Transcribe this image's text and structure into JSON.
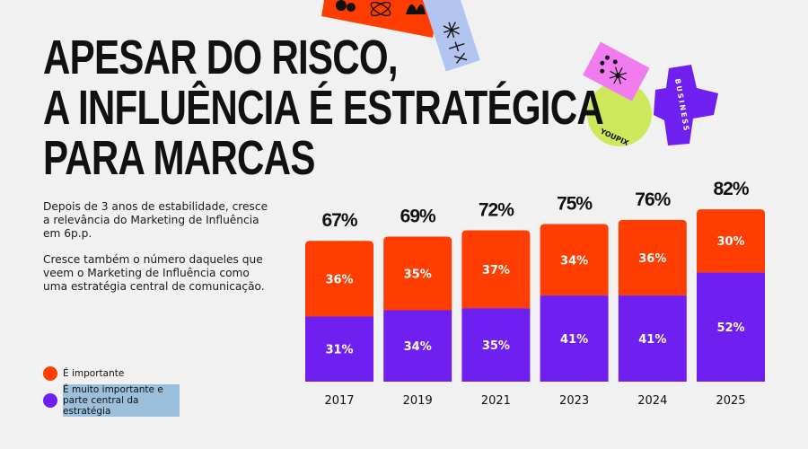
{
  "title": {
    "lines": [
      "APESAR DO RISCO,",
      "A INFLUÊNCIA É ESTRATÉGICA",
      "PARA MARCAS"
    ]
  },
  "description": {
    "paragraphs": [
      "Depois de 3 anos de estabilidade, cresce a relevância do Marketing de Influência em 6p.p.",
      "Cresce também o número daqueles que veem o Marketing de Influência como uma estratégia central de comunicação."
    ]
  },
  "stickers": {
    "circle_text": "YOUPIX",
    "badge_text": "BUSINESS"
  },
  "colors": {
    "important": "#ff3d00",
    "very_important": "#6f1ff0",
    "background": "#f1f1f1"
  },
  "legend": [
    {
      "label": "É importante",
      "color": "#ff3d00"
    },
    {
      "label": "É muito importante e parte central da estratégia",
      "color": "#6f1ff0"
    }
  ],
  "chart_data": {
    "type": "bar",
    "stacked": true,
    "categories": [
      "2017",
      "2019",
      "2021",
      "2023",
      "2024",
      "2025"
    ],
    "series": [
      {
        "name": "É muito importante e parte central da estratégia",
        "values": [
          31,
          34,
          35,
          41,
          41,
          52
        ],
        "labels": [
          "31%",
          "34%",
          "35%",
          "41%",
          "41%",
          "52%"
        ]
      },
      {
        "name": "É importante",
        "values": [
          36,
          35,
          37,
          34,
          36,
          30
        ],
        "labels": [
          "36%",
          "35%",
          "37%",
          "34%",
          "36%",
          "30%"
        ]
      }
    ],
    "totals": [
      67,
      69,
      72,
      75,
      76,
      82
    ],
    "total_labels": [
      "67%",
      "69%",
      "72%",
      "75%",
      "76%",
      "82%"
    ],
    "grid": false,
    "legend_position": "left"
  }
}
